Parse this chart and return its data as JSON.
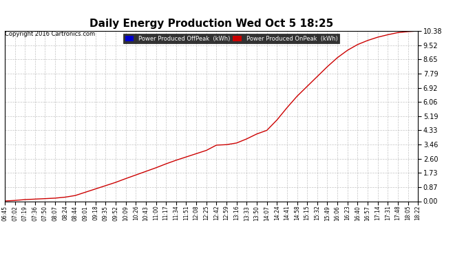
{
  "title": "Daily Energy Production Wed Oct 5 18:25",
  "copyright": "Copyright 2016 Cartronics.com",
  "legend_offpeak_color": "#0000cc",
  "legend_onpeak_color": "#cc0000",
  "line_color": "#cc0000",
  "background_color": "#ffffff",
  "plot_bg_color": "#ffffff",
  "grid_color": "#aaaaaa",
  "yticks": [
    0.0,
    0.87,
    1.73,
    2.6,
    3.46,
    4.33,
    5.19,
    6.06,
    6.92,
    7.79,
    8.65,
    9.52,
    10.38
  ],
  "ymax": 10.38,
  "ymin": 0.0,
  "xtick_labels": [
    "06:45",
    "07:02",
    "07:19",
    "07:36",
    "07:50",
    "08:07",
    "08:24",
    "08:44",
    "09:01",
    "09:18",
    "09:35",
    "09:52",
    "10:09",
    "10:26",
    "10:43",
    "11:00",
    "11:17",
    "11:34",
    "11:51",
    "12:08",
    "12:25",
    "12:42",
    "12:59",
    "13:16",
    "13:33",
    "13:50",
    "14:07",
    "14:24",
    "14:41",
    "14:58",
    "15:15",
    "15:32",
    "15:49",
    "16:06",
    "16:23",
    "16:40",
    "16:57",
    "17:14",
    "17:31",
    "17:48",
    "18:05",
    "18:22"
  ],
  "x_values": [
    0,
    1,
    2,
    3,
    4,
    5,
    6,
    7,
    8,
    9,
    10,
    11,
    12,
    13,
    14,
    15,
    16,
    17,
    18,
    19,
    20,
    21,
    22,
    23,
    24,
    25,
    26,
    27,
    28,
    29,
    30,
    31,
    32,
    33,
    34,
    35,
    36,
    37,
    38,
    39,
    40,
    41
  ],
  "y_values": [
    0.02,
    0.05,
    0.1,
    0.13,
    0.16,
    0.19,
    0.25,
    0.35,
    0.55,
    0.75,
    0.95,
    1.15,
    1.38,
    1.6,
    1.82,
    2.04,
    2.28,
    2.5,
    2.7,
    2.9,
    3.1,
    3.42,
    3.45,
    3.55,
    3.8,
    4.1,
    4.32,
    4.95,
    5.7,
    6.4,
    7.0,
    7.6,
    8.2,
    8.75,
    9.2,
    9.55,
    9.8,
    10.0,
    10.15,
    10.28,
    10.34,
    10.38
  ]
}
